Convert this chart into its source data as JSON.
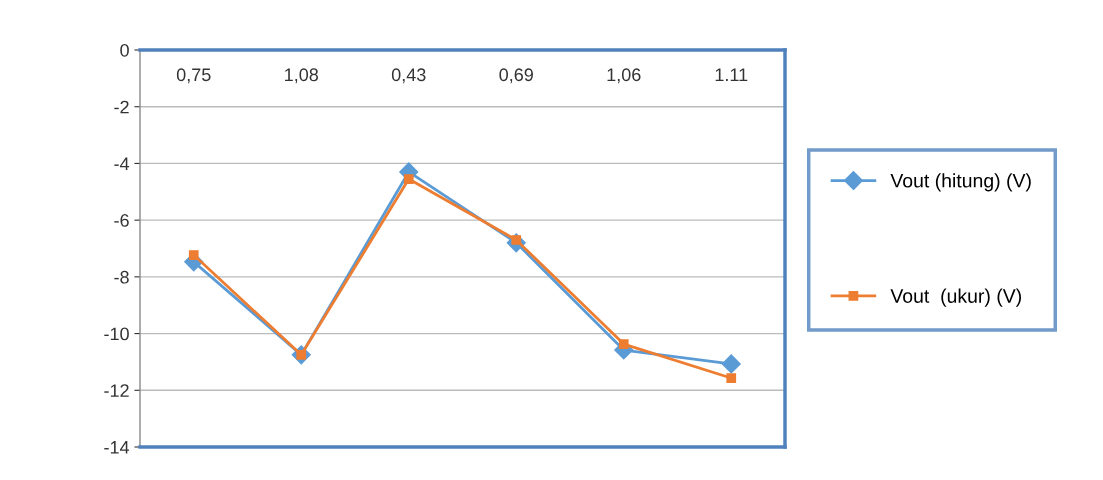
{
  "chart_data": {
    "type": "line",
    "categories": [
      "0,75",
      "1,08",
      "0,43",
      "0,69",
      "1,06",
      "1.11"
    ],
    "series": [
      {
        "name": "Vout (hitung) (V)",
        "color": "#5b9bd5",
        "marker": "diamond",
        "values": [
          -7.47,
          -10.75,
          -4.3,
          -6.8,
          -10.58,
          -11.07
        ]
      },
      {
        "name": "Vout  (ukur) (V)",
        "color": "#ed7d31",
        "marker": "square",
        "values": [
          -7.23,
          -10.75,
          -4.55,
          -6.7,
          -10.37,
          -11.57
        ]
      }
    ],
    "ylim": [
      -14,
      0
    ],
    "yticks": [
      -14,
      -12,
      -10,
      -8,
      -6,
      -4,
      -2,
      0
    ],
    "grid": "y",
    "legend": "right",
    "line_style": "solid"
  }
}
